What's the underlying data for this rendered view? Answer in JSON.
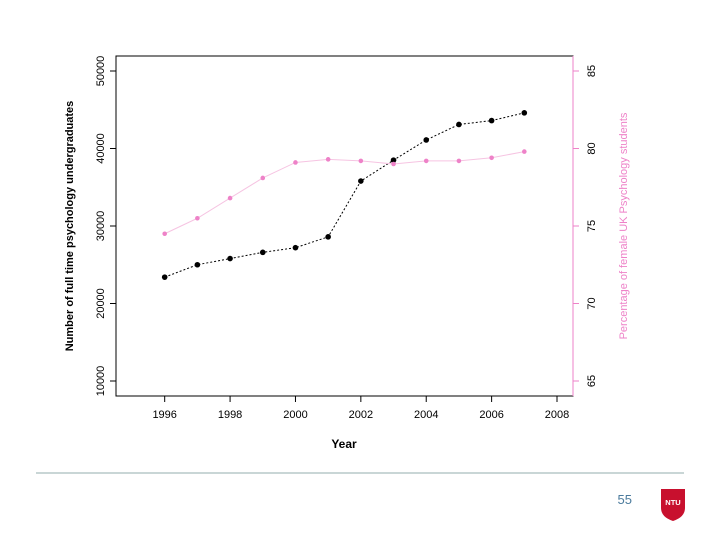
{
  "slide": {
    "page_number": "55",
    "logo_text": "NTU"
  },
  "colors": {
    "left_series": "#000000",
    "right_series": "#ee82c8",
    "right_line": "#f6c4e2",
    "axis": "#000000",
    "right_axis": "#ee82c8",
    "logo_red": "#c8102e",
    "rule": "#c9d6d6",
    "page_number": "#4a7a9c"
  },
  "chart_data": {
    "type": "line",
    "title": "",
    "xlabel": "Year",
    "ylabel_left": "Number of full time psychology undergraduates",
    "ylabel_right": "Percentage of female UK Psychology students",
    "xlim": [
      1995,
      2008
    ],
    "ylim_left": [
      10000,
      50000
    ],
    "ylim_right": [
      65,
      85
    ],
    "x_ticks": [
      1996,
      1998,
      2000,
      2002,
      2004,
      2006,
      2008
    ],
    "y_ticks_left": [
      10000,
      20000,
      30000,
      40000,
      50000
    ],
    "y_ticks_right": [
      65,
      70,
      75,
      80,
      85
    ],
    "grid": false,
    "series": [
      {
        "axis": "left",
        "color": "#000000",
        "points": [
          [
            1996,
            23400
          ],
          [
            1997,
            25000
          ],
          [
            1998,
            25800
          ],
          [
            1999,
            26600
          ],
          [
            2000,
            27200
          ],
          [
            2001,
            28600
          ],
          [
            2002,
            35800
          ],
          [
            2003,
            38500
          ],
          [
            2004,
            41100
          ],
          [
            2005,
            43100
          ],
          [
            2006,
            43600
          ],
          [
            2007,
            44600
          ]
        ]
      },
      {
        "axis": "right",
        "color": "#ee82c8",
        "points": [
          [
            1996,
            74.5
          ],
          [
            1997,
            75.5
          ],
          [
            1998,
            76.8
          ],
          [
            1999,
            78.1
          ],
          [
            2000,
            79.1
          ],
          [
            2001,
            79.3
          ],
          [
            2002,
            79.2
          ],
          [
            2003,
            79.0
          ],
          [
            2004,
            79.2
          ],
          [
            2005,
            79.2
          ],
          [
            2006,
            79.4
          ],
          [
            2007,
            79.8
          ]
        ]
      }
    ]
  }
}
